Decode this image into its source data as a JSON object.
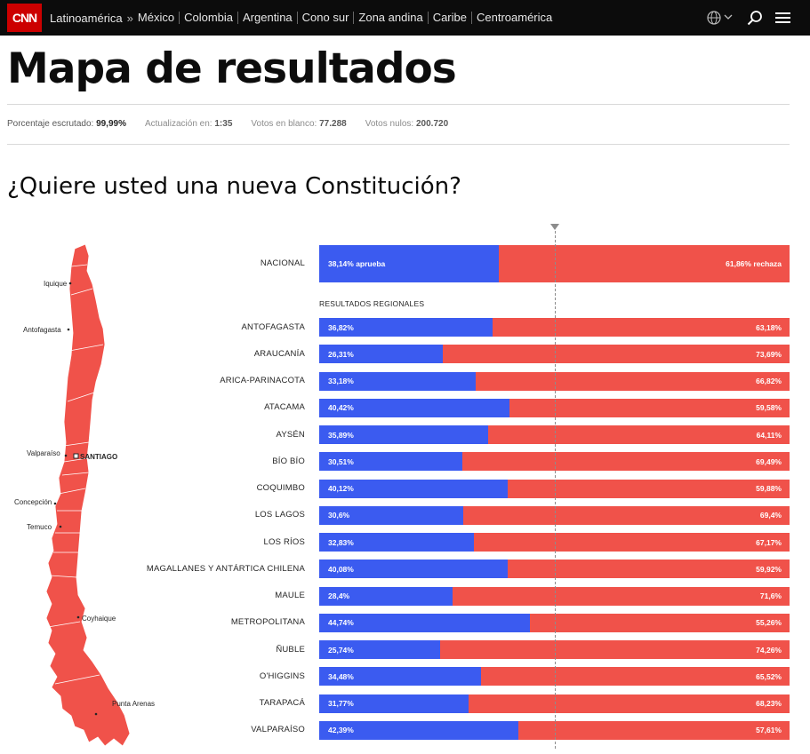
{
  "header": {
    "logo": "CNN",
    "region": "Latinoamérica",
    "nav_items": [
      "México",
      "Colombia",
      "Argentina",
      "Cono sur",
      "Zona andina",
      "Caribe",
      "Centroamérica"
    ]
  },
  "page": {
    "title": "Mapa de resultados",
    "stats": [
      {
        "label": "Porcentaje escrutado: ",
        "value": "99,99%"
      },
      {
        "label": "Actualización en: ",
        "value": "1:35"
      },
      {
        "label": "Votos en blanco: ",
        "value": "77.288"
      },
      {
        "label": "Votos nulos: ",
        "value": "200.720"
      }
    ],
    "question": "¿Quiere usted una nueva Constitución?"
  },
  "map": {
    "cities": [
      "Iquique",
      "Antofagasta",
      "Valparaíso",
      "SANTIAGO",
      "Concepción",
      "Temuco",
      "Coyhaique",
      "Punta Arenas"
    ]
  },
  "colors": {
    "aprueba": "#3b5bf0",
    "rechaza": "#f0524a"
  },
  "chart_data": {
    "type": "bar",
    "orientation": "horizontal-stacked-100",
    "national": {
      "label": "NACIONAL",
      "aprueba": 38.14,
      "rechaza": 61.86,
      "aprueba_text": "38,14% aprueba",
      "rechaza_text": "61,86% rechaza"
    },
    "subtitle": "RESULTADOS REGIONALES",
    "regions": [
      {
        "label": "ANTOFAGASTA",
        "aprueba": 36.82,
        "rechaza": 63.18,
        "aprueba_text": "36,82%",
        "rechaza_text": "63,18%"
      },
      {
        "label": "ARAUCANÍA",
        "aprueba": 26.31,
        "rechaza": 73.69,
        "aprueba_text": "26,31%",
        "rechaza_text": "73,69%"
      },
      {
        "label": "ARICA-PARINACOTA",
        "aprueba": 33.18,
        "rechaza": 66.82,
        "aprueba_text": "33,18%",
        "rechaza_text": "66,82%"
      },
      {
        "label": "ATACAMA",
        "aprueba": 40.42,
        "rechaza": 59.58,
        "aprueba_text": "40,42%",
        "rechaza_text": "59,58%"
      },
      {
        "label": "AYSÉN",
        "aprueba": 35.89,
        "rechaza": 64.11,
        "aprueba_text": "35,89%",
        "rechaza_text": "64,11%"
      },
      {
        "label": "BÍO BÍO",
        "aprueba": 30.51,
        "rechaza": 69.49,
        "aprueba_text": "30,51%",
        "rechaza_text": "69,49%"
      },
      {
        "label": "COQUIMBO",
        "aprueba": 40.12,
        "rechaza": 59.88,
        "aprueba_text": "40,12%",
        "rechaza_text": "59,88%"
      },
      {
        "label": "LOS LAGOS",
        "aprueba": 30.6,
        "rechaza": 69.4,
        "aprueba_text": "30,6%",
        "rechaza_text": "69,4%"
      },
      {
        "label": "LOS RÍOS",
        "aprueba": 32.83,
        "rechaza": 67.17,
        "aprueba_text": "32,83%",
        "rechaza_text": "67,17%"
      },
      {
        "label": "MAGALLANES Y ANTÁRTICA CHILENA",
        "aprueba": 40.08,
        "rechaza": 59.92,
        "aprueba_text": "40,08%",
        "rechaza_text": "59,92%"
      },
      {
        "label": "MAULE",
        "aprueba": 28.4,
        "rechaza": 71.6,
        "aprueba_text": "28,4%",
        "rechaza_text": "71,6%"
      },
      {
        "label": "METROPOLITANA",
        "aprueba": 44.74,
        "rechaza": 55.26,
        "aprueba_text": "44,74%",
        "rechaza_text": "55,26%"
      },
      {
        "label": "ÑUBLE",
        "aprueba": 25.74,
        "rechaza": 74.26,
        "aprueba_text": "25,74%",
        "rechaza_text": "74,26%"
      },
      {
        "label": "O'HIGGINS",
        "aprueba": 34.48,
        "rechaza": 65.52,
        "aprueba_text": "34,48%",
        "rechaza_text": "65,52%"
      },
      {
        "label": "TARAPACÁ",
        "aprueba": 31.77,
        "rechaza": 68.23,
        "aprueba_text": "31,77%",
        "rechaza_text": "68,23%"
      },
      {
        "label": "VALPARAÍSO",
        "aprueba": 42.39,
        "rechaza": 57.61,
        "aprueba_text": "42,39%",
        "rechaza_text": "57,61%"
      }
    ],
    "reference_line": 50,
    "xlim": [
      0,
      100
    ]
  }
}
